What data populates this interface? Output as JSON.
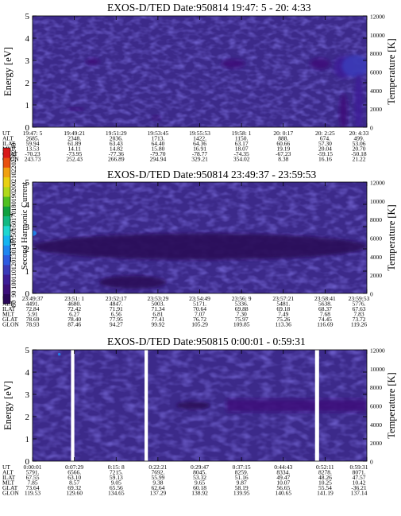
{
  "chart_data": [
    {
      "type": "heatmap",
      "title": "EXOS-D/TED   Date:950814  19:47: 5 - 20: 4:33",
      "ylabel": "Energy [eV]",
      "ylabel_right": "Temperature [K]",
      "ylim": [
        0,
        5
      ],
      "yticks": [
        "0",
        "1",
        "2",
        "3",
        "4",
        "5"
      ],
      "ylim_right": [
        0,
        12000
      ],
      "yticks_right": [
        "0",
        "2000",
        "4000",
        "6000",
        "8000",
        "10000",
        "12000"
      ],
      "orbit_labels": [
        "UT",
        "ALT",
        "ILAT",
        "MLT",
        "GLAT",
        "GLON"
      ],
      "orbit_columns": [
        [
          "19:47: 5",
          "2685.",
          "59.94",
          "13.53",
          "-70.23",
          "243.73"
        ],
        [
          "19:49:21",
          "2348.",
          "61.89",
          "14.11",
          "-73.95",
          "252.43"
        ],
        [
          "19:51:29",
          "2036.",
          "63.43",
          "14.82",
          "-77.36",
          "266.89"
        ],
        [
          "19:53:45",
          "1713.",
          "64.40",
          "15.80",
          "-79.70",
          "294.94"
        ],
        [
          "19:55:53",
          "1422.",
          "64.36",
          "16.91",
          "-78.77",
          "329.21"
        ],
        [
          "19:58: 1",
          "1150.",
          "63.17",
          "18.07",
          "-74.35",
          "354.02"
        ],
        [
          "20: 0:17",
          "888.",
          "60.66",
          "19.19",
          "-67.23",
          "8.38"
        ],
        [
          "20: 2:25",
          "674.",
          "57.30",
          "20.04",
          "-59.15",
          "16.16"
        ],
        [
          "20: 4:33",
          "499.",
          "53.06",
          "20.70",
          "-50.18",
          "21.22"
        ]
      ],
      "features": [
        {
          "x": 0.13,
          "y": 0.82,
          "rx": 0.025,
          "ry": 0.045,
          "level": 2.4
        },
        {
          "x": 0.37,
          "y": 0.42,
          "rx": 0.012,
          "ry": 0.08,
          "level": 1.6
        },
        {
          "x": 0.18,
          "y": 2.95,
          "rx": 0.02,
          "ry": 0.15,
          "level": 1.5
        },
        {
          "x": 0.6,
          "y": 2.85,
          "rx": 0.035,
          "ry": 0.2,
          "level": 1.9
        },
        {
          "x": 0.86,
          "y": 2.85,
          "rx": 0.03,
          "ry": 0.25,
          "level": 1.8
        },
        {
          "x": 0.93,
          "y": 2.7,
          "rx": 0.03,
          "ry": 0.5,
          "level": 3.2
        },
        {
          "x": 0.965,
          "y": 2.75,
          "rx": 0.04,
          "ry": 0.5,
          "level": 3.8
        },
        {
          "x": 0.975,
          "y": 1.1,
          "rx": 0.012,
          "ry": 1.3,
          "level": 3.0
        },
        {
          "x": 0.93,
          "y": 0.7,
          "rx": 0.012,
          "ry": 0.8,
          "level": 1.8
        }
      ]
    },
    {
      "type": "heatmap",
      "title": "EXOS-D/TED   Date:950814  23:49:37 - 23:59:53",
      "ylabel": "Energy [eV]",
      "ylabel_right": "Temperature [K]",
      "ylim": [
        0,
        5
      ],
      "yticks": [
        "0",
        "1",
        "2",
        "3",
        "4",
        "5"
      ],
      "ylim_right": [
        0,
        12000
      ],
      "yticks_right": [
        "0",
        "2000",
        "4000",
        "6000",
        "8000",
        "10000",
        "12000"
      ],
      "orbit_labels": [
        "UT",
        "ALT",
        "ILAT",
        "MLT",
        "GLAT",
        "GLON"
      ],
      "orbit_columns": [
        [
          "23:49:37",
          "4491.",
          "72.84",
          "5.91",
          "78.69",
          "78.93"
        ],
        [
          "23:51: 1",
          "4680.",
          "72.42",
          "6.27",
          "78.40",
          "87.46"
        ],
        [
          "23:52:17",
          "4847.",
          "71.91",
          "6.56",
          "77.95",
          "94.27"
        ],
        [
          "23:53:29",
          "5003.",
          "71.34",
          "6.81",
          "77.41",
          "99.92"
        ],
        [
          "23:54:49",
          "5171.",
          "70.64",
          "7.07",
          "76.72",
          "105.29"
        ],
        [
          "23:56: 9",
          "5336.",
          "69.88",
          "7.30",
          "75.97",
          "109.85"
        ],
        [
          "23:57:21",
          "5481.",
          "69.18",
          "7.49",
          "75.26",
          "113.36"
        ],
        [
          "23:58:41",
          "5638.",
          "68.37",
          "7.68",
          "74.45",
          "116.69"
        ],
        [
          "23:59:53",
          "5776.",
          "67.63",
          "7.83",
          "73.72",
          "119.26"
        ]
      ],
      "features": [
        {
          "x": 0.0,
          "y": 2.7,
          "rx": 0.012,
          "ry": 0.12,
          "level": 5.5
        },
        {
          "x": 0.5,
          "y": 2.1,
          "rx": 0.5,
          "ry": 0.6,
          "level": 1.2
        },
        {
          "x": 0.3,
          "y": 0.5,
          "rx": 0.1,
          "ry": 0.3,
          "level": 1.1
        }
      ]
    },
    {
      "type": "heatmap",
      "title": "EXOS-D/TED   Date:950815  0:00:01 - 0:59:31",
      "ylabel": "Energy [eV]",
      "ylabel_right": "Temperature [K]",
      "ylim": [
        0,
        5
      ],
      "yticks": [
        "0",
        "1",
        "2",
        "3",
        "4",
        "5"
      ],
      "ylim_right": [
        0,
        12000
      ],
      "yticks_right": [
        "0",
        "2000",
        "4000",
        "6000",
        "8000",
        "10000",
        "12000"
      ],
      "orbit_labels": [
        "UT",
        "ALT",
        "ILAT",
        "MLT",
        "GLAT",
        "GLON"
      ],
      "orbit_columns": [
        [
          "0:00:01",
          "5791.",
          "67.55",
          "7.85",
          "73.64",
          "119.53"
        ],
        [
          "0:07:29",
          "6566.",
          "63.10",
          "8.57",
          "69.32",
          "129.60"
        ],
        [
          "0:15: 8",
          "7215.",
          "59.13",
          "9.05",
          "65.56",
          "134.65"
        ],
        [
          "0:22:21",
          "7692.",
          "55.99",
          "9.38",
          "62.64",
          "137.29"
        ],
        [
          "0:29:47",
          "8045.",
          "53.32",
          "9.65",
          "60.18",
          "138.92"
        ],
        [
          "0:37:15",
          "8259.",
          "51.16",
          "9.87",
          "58.19",
          "139.95"
        ],
        [
          "0:44:43",
          "8334.",
          "49.47",
          "10.07",
          "56.65",
          "140.65"
        ],
        [
          "0:52:11",
          "8278.",
          "48.26",
          "10.25",
          "55.54",
          "141.19"
        ],
        [
          "0:59:31",
          "8071.",
          "47.57",
          "10.42",
          "-36.21",
          "137.14"
        ]
      ],
      "data_gaps": [
        [
          0.115,
          0.125
        ],
        [
          0.335,
          0.345
        ],
        [
          0.845,
          0.857
        ]
      ],
      "band": {
        "x_start": 0.58,
        "x_end": 1.0,
        "y_center": 2.5,
        "y_halfwidth": 0.28,
        "level": 1.9
      },
      "features": [
        {
          "x": 0.08,
          "y": 4.8,
          "rx": 0.004,
          "ry": 0.06,
          "level": 5.5
        },
        {
          "x": 0.48,
          "y": 2.5,
          "rx": 0.05,
          "ry": 0.18,
          "level": 1.3
        }
      ]
    }
  ],
  "colorbar": {
    "label": "Second Harmonic Current",
    "ticks": [
      "80",
      "90",
      "100",
      "110",
      "120",
      "130",
      "140",
      "150",
      "160",
      "170",
      "180",
      "190",
      "200",
      "210",
      "220",
      "230",
      "240"
    ],
    "colors": [
      "#000000",
      "#2a0858",
      "#3c0f7a",
      "#3d1d96",
      "#3a3ab8",
      "#2d5be0",
      "#1e86f0",
      "#14b4f0",
      "#1ed6d0",
      "#12b882",
      "#10a040",
      "#50c020",
      "#b0d818",
      "#e8d010",
      "#f0a010",
      "#e85010",
      "#d81818"
    ],
    "background_color": "#3c2a8a"
  }
}
